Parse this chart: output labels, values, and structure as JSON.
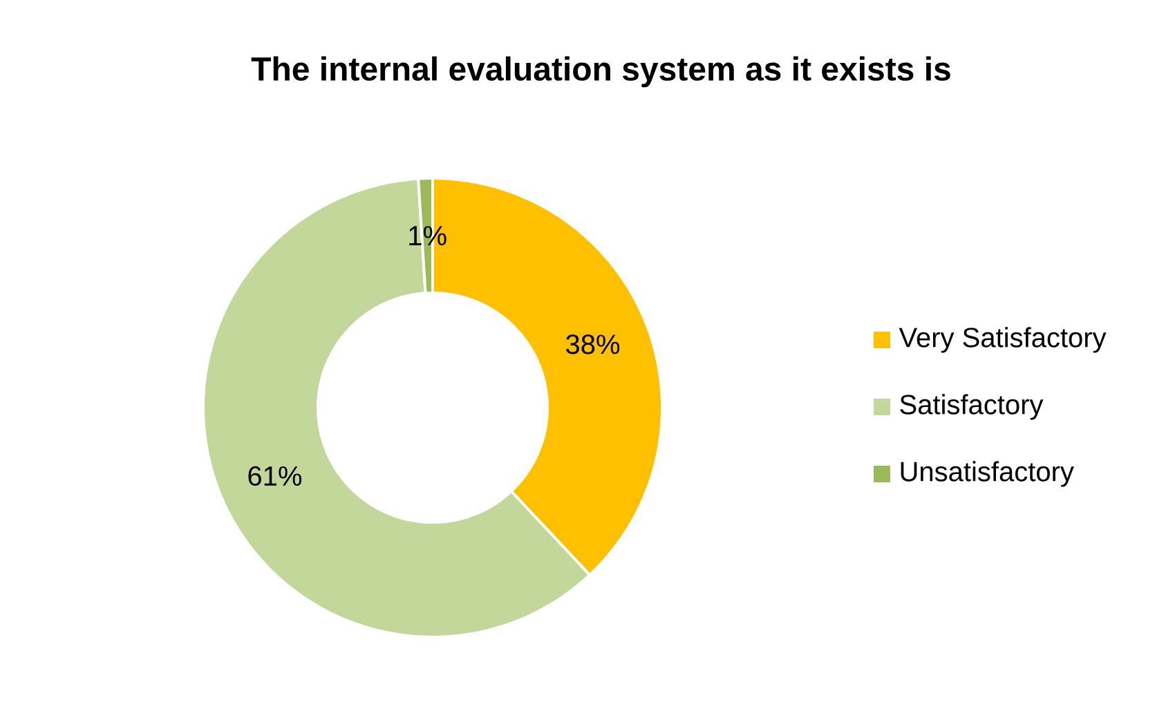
{
  "chart_data": {
    "type": "donut",
    "title": "The internal evaluation system as it exists is",
    "categories": [
      "Very Satisfactory",
      "Satisfactory",
      "Unsatisfactory"
    ],
    "values": [
      38,
      61,
      1
    ],
    "colors": [
      "#ffc000",
      "#c4d79b",
      "#9bbb59"
    ],
    "value_labels": [
      "38%",
      "61%",
      "1%"
    ],
    "legend": "right"
  }
}
